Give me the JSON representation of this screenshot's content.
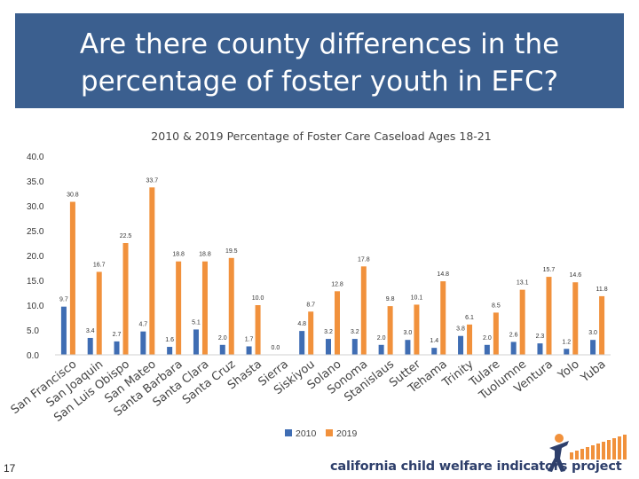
{
  "slide": {
    "title_line1": "Are there county differences in the",
    "title_line2": "percentage of foster youth in EFC?",
    "page_number": "17",
    "logo_text": "california child welfare indicators project"
  },
  "colors": {
    "series_2010": "#3f6db3",
    "series_2019": "#f1913c",
    "banner": "#3b5f8f"
  },
  "chart_data": {
    "type": "bar",
    "title": "2010 & 2019 Percentage of Foster Care Caseload Ages 18-21",
    "xlabel": "",
    "ylabel": "",
    "ylim": [
      0,
      40
    ],
    "yticks": [
      "0.0",
      "5.0",
      "10.0",
      "15.0",
      "20.0",
      "25.0",
      "30.0",
      "35.0",
      "40.0"
    ],
    "grid": false,
    "legend": "bottom",
    "categories": [
      "San Francisco",
      "San Joaquin",
      "San Luis Obispo",
      "San Mateo",
      "Santa Barbara",
      "Santa Clara",
      "Santa Cruz",
      "Shasta",
      "Sierra",
      "Siskiyou",
      "Solano",
      "Sonoma",
      "Stanislaus",
      "Sutter",
      "Tehama",
      "Trinity",
      "Tulare",
      "Tuolumne",
      "Ventura",
      "Yolo",
      "Yuba"
    ],
    "series": [
      {
        "name": "2010",
        "values": [
          9.7,
          3.4,
          2.7,
          4.7,
          1.6,
          5.1,
          2.0,
          1.7,
          0.0,
          4.8,
          3.2,
          3.2,
          2.0,
          3.0,
          1.4,
          3.8,
          2.0,
          2.6,
          2.3,
          1.2,
          3.0
        ],
        "labels": [
          "9.7",
          "3.4",
          "2.7",
          "4.7",
          "1.6",
          "5.1",
          "2.0",
          "1.7",
          "0.0",
          "4.8",
          "3.2",
          "3.2",
          "2.0",
          "3.0",
          "1.4",
          "3.8",
          "2.0",
          "2.6",
          "2.3",
          "1.2",
          "3.0"
        ]
      },
      {
        "name": "2019",
        "values": [
          30.8,
          16.7,
          22.5,
          33.7,
          18.8,
          18.8,
          19.5,
          10.0,
          null,
          8.7,
          12.8,
          17.8,
          9.8,
          10.1,
          14.8,
          6.1,
          8.5,
          13.1,
          15.7,
          14.6,
          11.8
        ],
        "labels": [
          "30.8",
          "16.7",
          "22.5",
          "33.7",
          "18.8",
          "18.8",
          "19.5",
          "10.0",
          "",
          "8.7",
          "12.8",
          "17.8",
          "9.8",
          "10.1",
          "14.8",
          "6.1",
          "8.5",
          "13.1",
          "15.7",
          "14.6",
          "11.8"
        ]
      }
    ]
  }
}
